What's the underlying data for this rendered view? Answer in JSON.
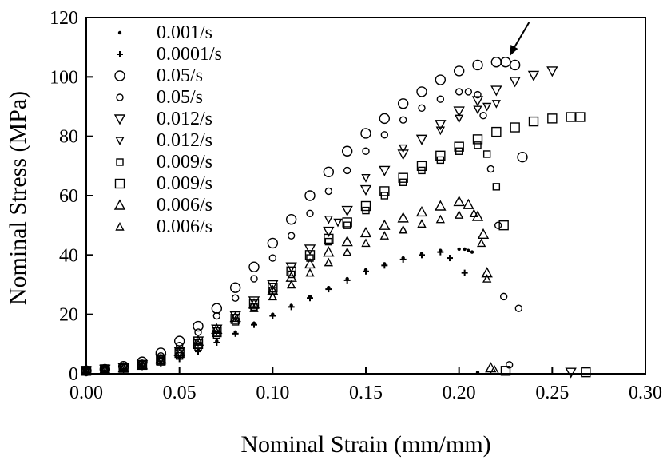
{
  "chart_data": {
    "type": "scatter",
    "title": "",
    "xlabel": "Nominal Strain (mm/mm)",
    "ylabel": "Nominal Stress (MPa)",
    "xlim": [
      0,
      0.3
    ],
    "ylim": [
      0,
      120
    ],
    "x_ticks": [
      "0.00",
      "0.05",
      "0.10",
      "0.15",
      "0.20",
      "0.25",
      "0.30"
    ],
    "y_ticks": [
      "0",
      "20",
      "40",
      "60",
      "80",
      "100",
      "120"
    ],
    "grid": false,
    "legend_position": "top-left",
    "series": [
      {
        "name": "0.001/s",
        "marker": "dot",
        "x": [
          0.0,
          0.01,
          0.02,
          0.03,
          0.04,
          0.05,
          0.06,
          0.07,
          0.08,
          0.09,
          0.1,
          0.11,
          0.12,
          0.13,
          0.14,
          0.15,
          0.16,
          0.17,
          0.18,
          0.19,
          0.2,
          0.203,
          0.205,
          0.207,
          0.21
        ],
        "y": [
          0.5,
          1.0,
          1.5,
          2.5,
          4.0,
          5.5,
          8.0,
          11,
          14,
          17,
          20,
          23,
          26,
          29,
          32,
          35,
          37,
          39,
          40.5,
          41.5,
          42,
          42,
          41.5,
          41,
          0.5
        ]
      },
      {
        "name": "0.0001/s",
        "marker": "plus",
        "x": [
          0.0,
          0.01,
          0.02,
          0.03,
          0.04,
          0.05,
          0.06,
          0.07,
          0.08,
          0.09,
          0.1,
          0.11,
          0.12,
          0.13,
          0.14,
          0.15,
          0.16,
          0.17,
          0.18,
          0.19,
          0.195,
          0.203
        ],
        "y": [
          0.5,
          1.0,
          1.5,
          2.5,
          3.5,
          5.0,
          7.5,
          10.5,
          13.5,
          16.5,
          19.5,
          22.5,
          25.5,
          28.5,
          31.5,
          34.5,
          36.5,
          38.5,
          40,
          41,
          39,
          34
        ]
      },
      {
        "name": "0.05/s",
        "marker": "circle-large",
        "x": [
          0.0,
          0.01,
          0.02,
          0.03,
          0.04,
          0.05,
          0.06,
          0.07,
          0.08,
          0.09,
          0.1,
          0.11,
          0.12,
          0.13,
          0.14,
          0.15,
          0.16,
          0.17,
          0.18,
          0.19,
          0.2,
          0.21,
          0.22,
          0.225,
          0.23,
          0.234
        ],
        "y": [
          1,
          1.5,
          2.5,
          4,
          7,
          11,
          16,
          22,
          29,
          36,
          44,
          52,
          60,
          68,
          75,
          81,
          86,
          91,
          95,
          99,
          102,
          104,
          105,
          105,
          104,
          73
        ]
      },
      {
        "name": "0.05/s",
        "marker": "circle-small",
        "x": [
          0.0,
          0.01,
          0.02,
          0.03,
          0.04,
          0.05,
          0.06,
          0.07,
          0.08,
          0.09,
          0.1,
          0.11,
          0.12,
          0.13,
          0.14,
          0.15,
          0.16,
          0.17,
          0.18,
          0.19,
          0.2,
          0.205,
          0.21,
          0.213,
          0.217,
          0.221,
          0.224,
          0.227,
          0.232
        ],
        "y": [
          1,
          1.5,
          2.5,
          3.5,
          6,
          9.5,
          14,
          19.5,
          25.5,
          32,
          39,
          46.5,
          54,
          61.5,
          68.5,
          75,
          80.5,
          85.5,
          89.5,
          92.5,
          95,
          95,
          94,
          87,
          69,
          50,
          26,
          3,
          22
        ]
      },
      {
        "name": "0.012/s",
        "marker": "tri-down-large",
        "x": [
          0.0,
          0.01,
          0.02,
          0.03,
          0.04,
          0.05,
          0.06,
          0.07,
          0.08,
          0.09,
          0.1,
          0.11,
          0.12,
          0.13,
          0.14,
          0.15,
          0.16,
          0.17,
          0.18,
          0.19,
          0.2,
          0.21,
          0.22,
          0.23,
          0.24,
          0.25,
          0.26
        ],
        "y": [
          1,
          1.5,
          2,
          3,
          5,
          7.5,
          11,
          15,
          19.5,
          24.5,
          30,
          36,
          42,
          48,
          55,
          62,
          68.5,
          74,
          79,
          84,
          88.5,
          92,
          95.5,
          98.5,
          100.5,
          102,
          0.5
        ]
      },
      {
        "name": "0.012/s",
        "marker": "tri-down-small",
        "x": [
          0.13,
          0.135,
          0.15,
          0.17,
          0.19,
          0.2,
          0.21,
          0.215,
          0.22
        ],
        "y": [
          52,
          51,
          66,
          76,
          82,
          86,
          89,
          90,
          91
        ]
      },
      {
        "name": "0.009/s",
        "marker": "square-small",
        "x": [
          0.0,
          0.01,
          0.02,
          0.03,
          0.04,
          0.05,
          0.06,
          0.07,
          0.08,
          0.09,
          0.1,
          0.11,
          0.12,
          0.13,
          0.14,
          0.15,
          0.16,
          0.17,
          0.18,
          0.19,
          0.2,
          0.21,
          0.215,
          0.22
        ],
        "y": [
          1,
          1.5,
          2,
          3,
          4,
          6,
          9,
          13,
          17.5,
          22.5,
          28,
          33.5,
          39,
          44.5,
          50,
          55,
          60,
          64.5,
          68.5,
          72,
          75,
          77,
          74,
          63
        ]
      },
      {
        "name": "0.009/s",
        "marker": "square-large",
        "x": [
          0.0,
          0.01,
          0.02,
          0.03,
          0.04,
          0.05,
          0.06,
          0.07,
          0.08,
          0.09,
          0.1,
          0.11,
          0.12,
          0.13,
          0.14,
          0.15,
          0.16,
          0.17,
          0.18,
          0.19,
          0.2,
          0.21,
          0.22,
          0.23,
          0.24,
          0.25,
          0.26,
          0.265,
          0.224,
          0.225,
          0.268
        ],
        "y": [
          1,
          1.5,
          2,
          3,
          4.5,
          7,
          10,
          14,
          18.5,
          23.5,
          29,
          34.5,
          40,
          45.5,
          51,
          56.5,
          61.5,
          66,
          70,
          73.5,
          76.5,
          79,
          81.5,
          83,
          85,
          86,
          86.5,
          86.5,
          50,
          1,
          0.5
        ]
      },
      {
        "name": "0.006/s",
        "marker": "tri-up-large",
        "x": [
          0.0,
          0.01,
          0.02,
          0.03,
          0.04,
          0.05,
          0.06,
          0.07,
          0.08,
          0.09,
          0.1,
          0.11,
          0.12,
          0.13,
          0.14,
          0.15,
          0.16,
          0.17,
          0.18,
          0.19,
          0.2,
          0.205,
          0.21,
          0.213,
          0.215,
          0.217,
          0.219
        ],
        "y": [
          1,
          1.5,
          2,
          3,
          5,
          7.5,
          11,
          15,
          19,
          23.5,
          28,
          32.5,
          37,
          41,
          44.5,
          47.5,
          50,
          52.5,
          54.5,
          56.5,
          58,
          57,
          53,
          47,
          34,
          2,
          1
        ]
      },
      {
        "name": "0.006/s",
        "marker": "tri-up-small",
        "x": [
          0.0,
          0.01,
          0.02,
          0.03,
          0.04,
          0.05,
          0.06,
          0.07,
          0.08,
          0.09,
          0.1,
          0.11,
          0.12,
          0.13,
          0.14,
          0.15,
          0.16,
          0.17,
          0.18,
          0.19,
          0.2,
          0.208,
          0.212,
          0.215
        ],
        "y": [
          1,
          1.5,
          2,
          3,
          4.5,
          7,
          10,
          14,
          18,
          22,
          26,
          30,
          34,
          37.5,
          41,
          44,
          46.5,
          48.5,
          50.5,
          52,
          53.5,
          54,
          44,
          32
        ]
      }
    ],
    "annotations": [
      {
        "type": "arrow",
        "x": 0.226,
        "y": 106
      }
    ]
  }
}
